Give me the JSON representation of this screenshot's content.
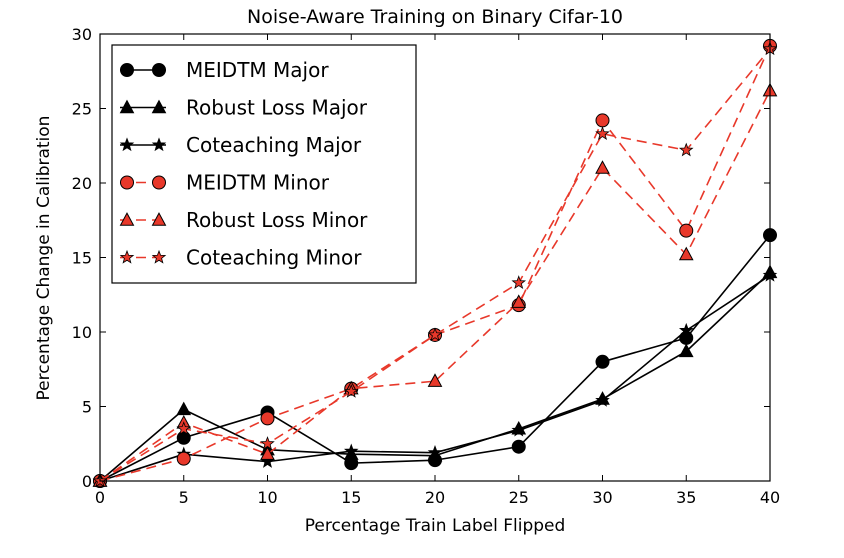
{
  "chart_data": {
    "type": "line",
    "title": "Noise-Aware Training on Binary Cifar-10",
    "xlabel": "Percentage Train Label Flipped",
    "ylabel": "Percentage Change in Calibration",
    "xlim": [
      0,
      40
    ],
    "ylim": [
      0,
      30
    ],
    "xticks": [
      0,
      5,
      10,
      15,
      20,
      25,
      30,
      35,
      40
    ],
    "yticks": [
      0,
      5,
      10,
      15,
      20,
      25,
      30
    ],
    "grid": false,
    "legend_position": "top-left",
    "x": [
      0,
      5,
      10,
      15,
      20,
      25,
      30,
      35,
      40
    ],
    "series": [
      {
        "name": "MEIDTM Major",
        "color": "#000000",
        "linestyle": "solid",
        "marker": "circle",
        "values": [
          0,
          2.9,
          4.6,
          1.2,
          1.4,
          2.3,
          8.0,
          9.6,
          16.5
        ]
      },
      {
        "name": "Robust Loss Major",
        "color": "#000000",
        "linestyle": "solid",
        "marker": "triangle",
        "values": [
          0,
          4.8,
          2.1,
          1.8,
          1.7,
          3.5,
          5.5,
          8.7,
          14.0
        ]
      },
      {
        "name": "Coteaching Major",
        "color": "#000000",
        "linestyle": "solid",
        "marker": "star",
        "values": [
          0,
          1.8,
          1.3,
          2.0,
          1.9,
          3.4,
          5.4,
          10.1,
          13.8
        ]
      },
      {
        "name": "MEIDTM Minor",
        "color": "#e8382a",
        "linestyle": "dashed",
        "marker": "circle",
        "values": [
          0,
          1.5,
          4.2,
          6.2,
          9.8,
          11.8,
          24.2,
          16.8,
          29.2
        ]
      },
      {
        "name": "Robust Loss Minor",
        "color": "#e8382a",
        "linestyle": "dashed",
        "marker": "triangle",
        "values": [
          0,
          3.9,
          1.8,
          6.2,
          6.7,
          12.0,
          21.0,
          15.2,
          26.2
        ]
      },
      {
        "name": "Coteaching Minor",
        "color": "#e8382a",
        "linestyle": "dashed",
        "marker": "star",
        "values": [
          0,
          3.5,
          2.5,
          6.0,
          9.8,
          13.3,
          23.3,
          22.2,
          29.0
        ]
      }
    ]
  }
}
